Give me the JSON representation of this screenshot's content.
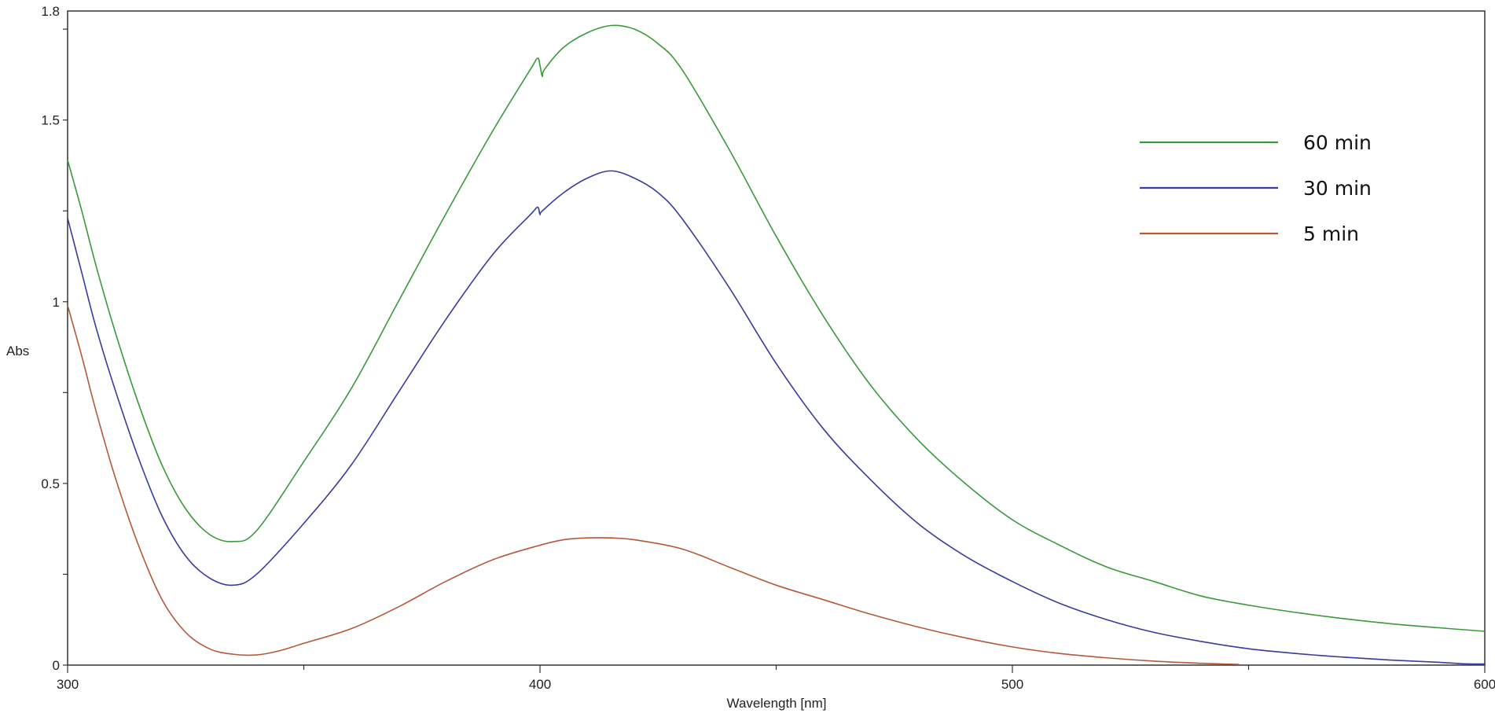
{
  "chart_data": {
    "type": "line",
    "title": "",
    "xlabel": "Wavelength [nm]",
    "ylabel": "Abs",
    "xlim": [
      300,
      600
    ],
    "ylim": [
      0,
      1.8
    ],
    "x_ticks": [
      "300",
      "400",
      "500",
      "600"
    ],
    "y_ticks": [
      "0",
      "0.5",
      "1",
      "1.5",
      "1.8"
    ],
    "grid": false,
    "legend_position": "top-right",
    "series": [
      {
        "name": "60 min",
        "color": "#3a9a3a",
        "x": [
          300,
          303,
          306,
          310,
          315,
          320,
          325,
          330,
          335,
          340,
          350,
          360,
          370,
          380,
          390,
          398,
          399.5,
          400,
          400.5,
          401,
          405,
          410,
          415,
          420,
          425,
          430,
          440,
          450,
          460,
          470,
          480,
          490,
          500,
          510,
          520,
          530,
          540,
          550,
          560,
          570,
          580,
          590,
          600
        ],
        "y": [
          1.39,
          1.25,
          1.1,
          0.92,
          0.72,
          0.55,
          0.43,
          0.36,
          0.34,
          0.37,
          0.56,
          0.76,
          1.0,
          1.24,
          1.47,
          1.64,
          1.67,
          1.65,
          1.62,
          1.64,
          1.7,
          1.74,
          1.76,
          1.75,
          1.71,
          1.64,
          1.42,
          1.18,
          0.96,
          0.77,
          0.62,
          0.5,
          0.4,
          0.33,
          0.27,
          0.23,
          0.19,
          0.165,
          0.145,
          0.128,
          0.114,
          0.103,
          0.093
        ]
      },
      {
        "name": "30 min",
        "color": "#3a3aa0",
        "x": [
          300,
          303,
          306,
          310,
          315,
          320,
          325,
          330,
          335,
          340,
          350,
          360,
          370,
          380,
          390,
          398,
          399.5,
          400,
          400.5,
          405,
          410,
          415,
          420,
          425,
          430,
          440,
          450,
          460,
          470,
          480,
          490,
          500,
          510,
          520,
          530,
          540,
          550,
          560,
          570,
          580,
          590,
          595,
          600
        ],
        "y": [
          1.23,
          1.08,
          0.93,
          0.76,
          0.57,
          0.41,
          0.3,
          0.24,
          0.22,
          0.25,
          0.39,
          0.55,
          0.75,
          0.95,
          1.13,
          1.24,
          1.26,
          1.24,
          1.25,
          1.3,
          1.34,
          1.36,
          1.34,
          1.3,
          1.23,
          1.04,
          0.83,
          0.65,
          0.51,
          0.39,
          0.3,
          0.23,
          0.17,
          0.125,
          0.09,
          0.065,
          0.045,
          0.032,
          0.022,
          0.014,
          0.008,
          0.004,
          0.003
        ]
      },
      {
        "name": "5 min",
        "color": "#b5583a",
        "x": [
          300,
          303,
          306,
          310,
          315,
          320,
          325,
          330,
          335,
          340,
          345,
          350,
          360,
          370,
          380,
          390,
          400,
          405,
          410,
          415,
          420,
          430,
          440,
          450,
          460,
          470,
          480,
          490,
          500,
          510,
          520,
          530,
          540,
          548
        ],
        "y": [
          0.99,
          0.85,
          0.7,
          0.52,
          0.33,
          0.18,
          0.09,
          0.045,
          0.03,
          0.028,
          0.04,
          0.06,
          0.1,
          0.16,
          0.23,
          0.29,
          0.33,
          0.345,
          0.35,
          0.35,
          0.345,
          0.32,
          0.27,
          0.22,
          0.18,
          0.14,
          0.105,
          0.075,
          0.05,
          0.032,
          0.02,
          0.011,
          0.005,
          0.002
        ]
      }
    ]
  }
}
